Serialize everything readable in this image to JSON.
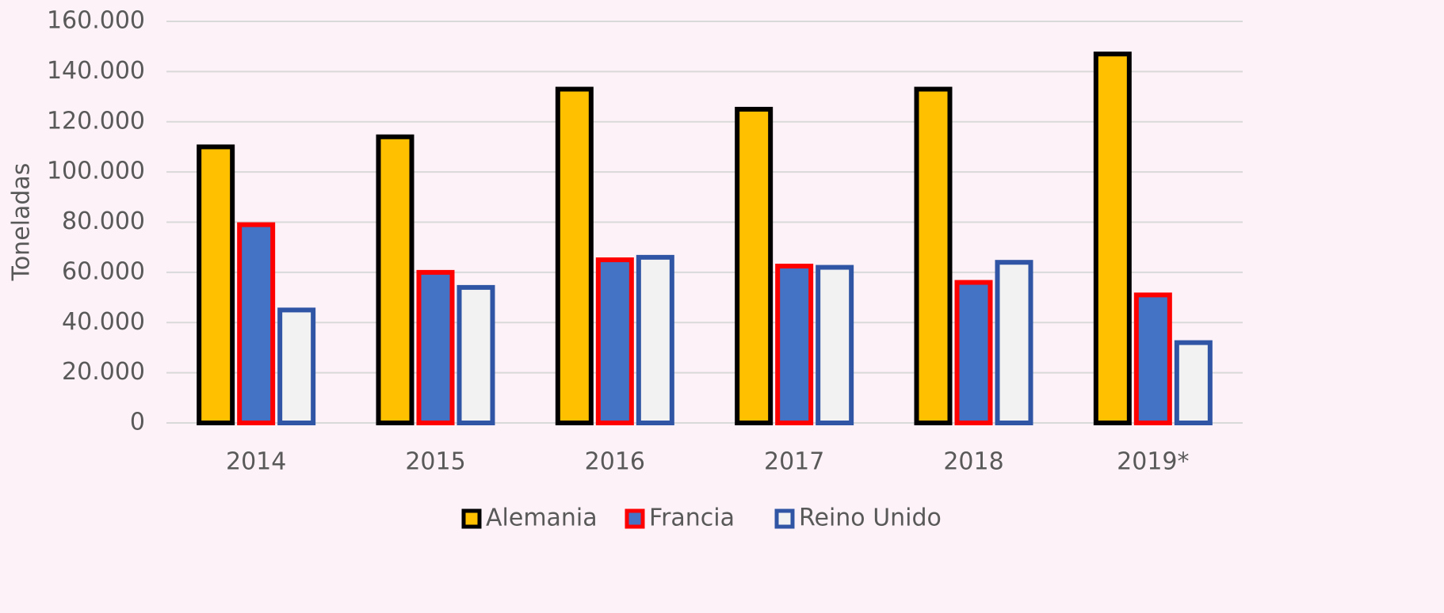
{
  "chart_data": {
    "type": "bar",
    "y_label": "Toneladas",
    "categories": [
      "2014",
      "2015",
      "2016",
      "2017",
      "2018",
      "2019*"
    ],
    "series": [
      {
        "name": "Alemania",
        "color": "#ffc000",
        "edge_color": "#000000",
        "values": [
          110000,
          114000,
          133000,
          125000,
          133000,
          147000
        ]
      },
      {
        "name": "Francia",
        "color": "#4472c4",
        "edge_color": "#ff0000",
        "values": [
          79000,
          60000,
          65000,
          62500,
          56000,
          51000
        ]
      },
      {
        "name": "Reino Unido",
        "color": "#f2f2f2",
        "edge_color": "#2f55a4",
        "values": [
          45000,
          54000,
          66000,
          62000,
          64000,
          32000
        ]
      }
    ],
    "ylim": [
      0,
      160000
    ],
    "yticks": [
      0,
      {
        "value": 20000,
        "label": "20.000"
      },
      {
        "value": 40000,
        "label": "40.000"
      },
      {
        "value": 60000,
        "label": "60.000"
      },
      {
        "value": 80000,
        "label": "80.000"
      },
      {
        "value": 100000,
        "label": "100.000"
      },
      {
        "value": 120000,
        "label": "120.000"
      },
      {
        "value": 140000,
        "label": "140.000"
      },
      {
        "value": 160000,
        "label": "160.000"
      }
    ],
    "grid": true,
    "legend": "bottom"
  }
}
